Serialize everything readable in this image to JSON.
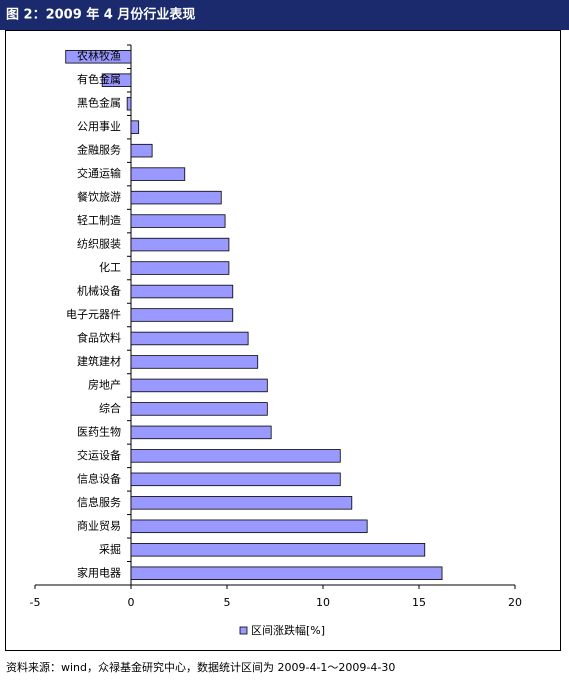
{
  "header": {
    "title": "图 2：2009 年 4 月份行业表现"
  },
  "chart_data": {
    "type": "hbar",
    "categories": [
      "农林牧渔",
      "有色金属",
      "黑色金属",
      "公用事业",
      "金融服务",
      "交通运输",
      "餐饮旅游",
      "轻工制造",
      "纺织服装",
      "化工",
      "机械设备",
      "电子元器件",
      "食品饮料",
      "建筑建材",
      "房地产",
      "综合",
      "医药生物",
      "交运设备",
      "信息设备",
      "信息服务",
      "商业贸易",
      "采掘",
      "家用电器"
    ],
    "series": [
      {
        "name": "区间涨跌幅[%]",
        "color": "#9999ff",
        "values": [
          -3.4,
          -1.5,
          -0.2,
          0.4,
          1.1,
          2.8,
          4.7,
          4.9,
          5.1,
          5.1,
          5.3,
          5.3,
          6.1,
          6.6,
          7.1,
          7.1,
          7.3,
          10.9,
          10.9,
          11.5,
          12.3,
          15.3,
          16.2
        ]
      }
    ],
    "xlim": [
      -5,
      20
    ],
    "xticks": [
      -5,
      0,
      5,
      10,
      15,
      20
    ],
    "legend": "bottom"
  },
  "footer": {
    "source": "资料来源：wind，众禄基金研究中心，数据统计区间为 2009-4-1～2009-4-30"
  }
}
